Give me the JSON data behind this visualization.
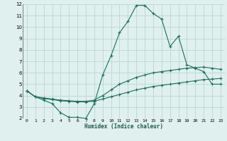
{
  "xlabel": "Humidex (Indice chaleur)",
  "ylabel": "",
  "bg_color": "#dff0ee",
  "grid_color": "#b8d8d4",
  "line_color": "#1a6e5c",
  "xlim": [
    -0.5,
    23.5
  ],
  "ylim": [
    2,
    12
  ],
  "xticks": [
    0,
    1,
    2,
    3,
    4,
    5,
    6,
    7,
    8,
    9,
    10,
    11,
    12,
    13,
    14,
    15,
    16,
    17,
    18,
    19,
    20,
    21,
    22,
    23
  ],
  "yticks": [
    2,
    3,
    4,
    5,
    6,
    7,
    8,
    9,
    10,
    11,
    12
  ],
  "line1_x": [
    0,
    1,
    2,
    3,
    4,
    5,
    6,
    7,
    8,
    9,
    10,
    11,
    12,
    13,
    14,
    15,
    16,
    17,
    18,
    19,
    20,
    21,
    22,
    23
  ],
  "line1_y": [
    4.4,
    3.9,
    3.6,
    3.3,
    2.5,
    2.1,
    2.1,
    2.0,
    3.3,
    5.8,
    7.5,
    9.5,
    10.5,
    11.9,
    11.9,
    11.2,
    10.7,
    8.3,
    9.2,
    6.7,
    6.4,
    6.1,
    5.0,
    5.0
  ],
  "line2_x": [
    0,
    1,
    2,
    3,
    4,
    5,
    6,
    7,
    8,
    9,
    10,
    11,
    12,
    13,
    14,
    15,
    16,
    17,
    18,
    19,
    20,
    21,
    22,
    23
  ],
  "line2_y": [
    4.4,
    3.9,
    3.75,
    3.65,
    3.55,
    3.5,
    3.45,
    3.45,
    3.5,
    3.7,
    3.9,
    4.1,
    4.3,
    4.5,
    4.65,
    4.8,
    4.9,
    5.0,
    5.1,
    5.2,
    5.3,
    5.4,
    5.45,
    5.5
  ],
  "line3_x": [
    0,
    1,
    2,
    3,
    4,
    5,
    6,
    7,
    8,
    9,
    10,
    11,
    12,
    13,
    14,
    15,
    16,
    17,
    18,
    19,
    20,
    21,
    22,
    23
  ],
  "line3_y": [
    4.4,
    3.9,
    3.8,
    3.7,
    3.6,
    3.55,
    3.5,
    3.5,
    3.6,
    4.0,
    4.5,
    5.0,
    5.3,
    5.6,
    5.8,
    6.0,
    6.1,
    6.2,
    6.3,
    6.4,
    6.45,
    6.5,
    6.4,
    6.3
  ]
}
